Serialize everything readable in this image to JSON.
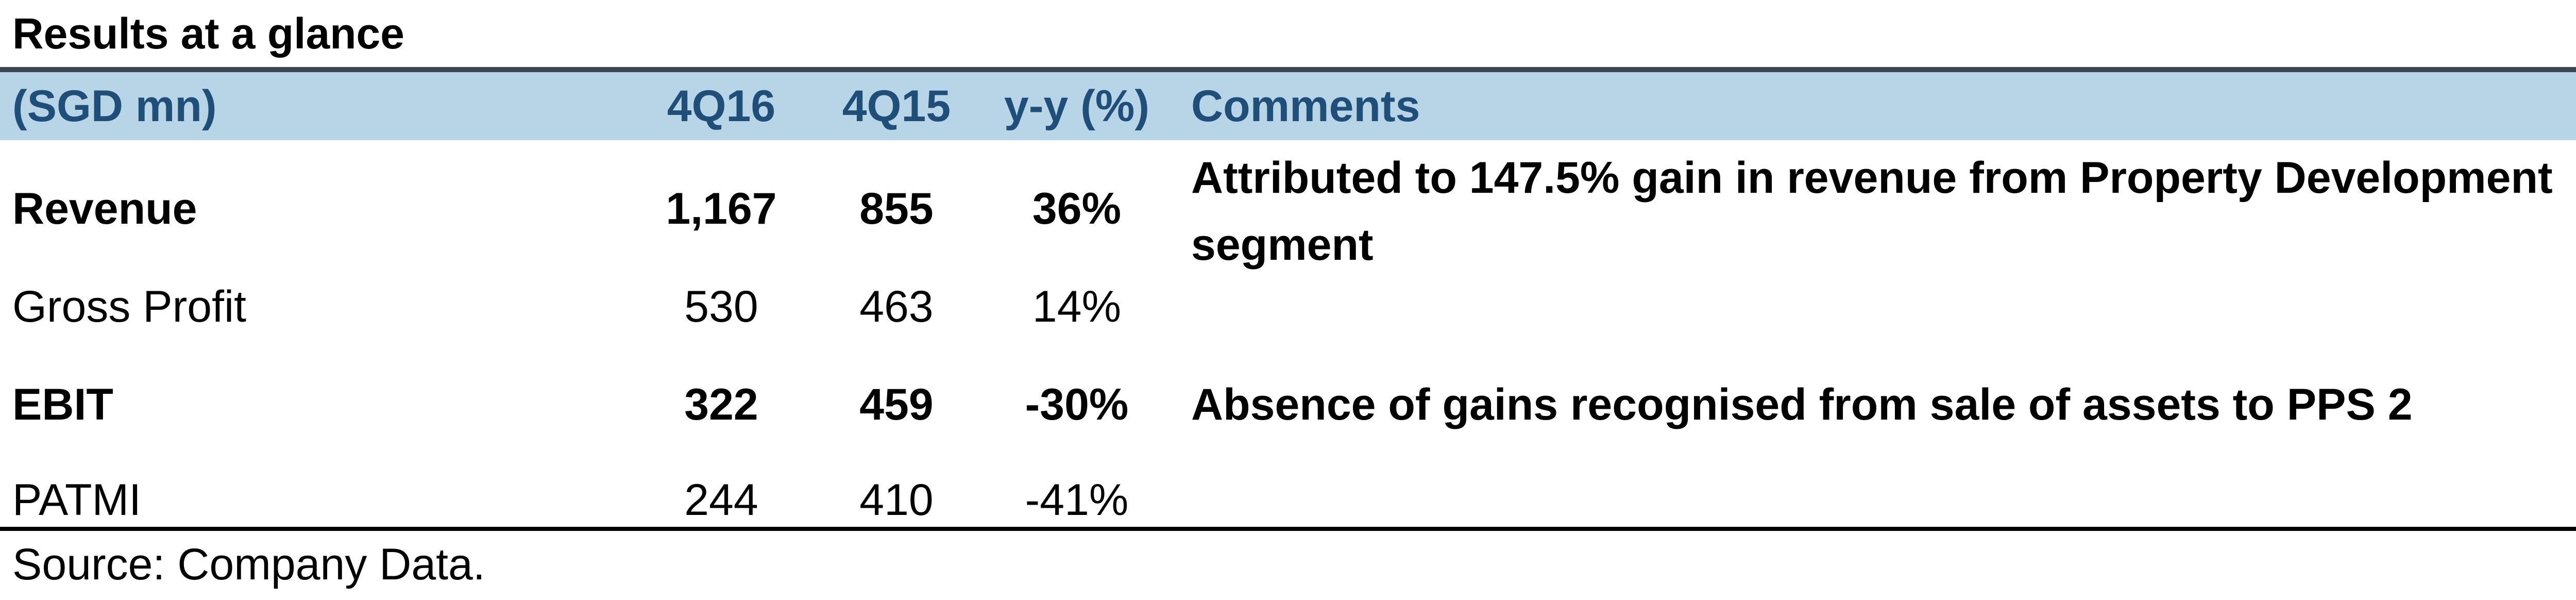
{
  "title": "Results at a glance",
  "header": {
    "label": "(SGD mn)",
    "col_4q16": "4Q16",
    "col_4q15": "4Q15",
    "col_yy": "y-y (%)",
    "col_comments": "Comments"
  },
  "rows": [
    {
      "label": "Revenue",
      "q4_16": "1,167",
      "q4_15": "855",
      "yy": "36%",
      "comment": "Attributed to 147.5% gain in revenue from Property Development segment",
      "bold": true
    },
    {
      "label": "Gross Profit",
      "q4_16": "530",
      "q4_15": "463",
      "yy": "14%",
      "comment": "",
      "bold": false
    },
    {
      "label": "EBIT",
      "q4_16": "322",
      "q4_15": "459",
      "yy": "-30%",
      "comment": "Absence of gains recognised from sale of assets to PPS 2",
      "bold": true
    },
    {
      "label": "PATMI",
      "q4_16": "244",
      "q4_15": "410",
      "yy": "-41%",
      "comment": "",
      "bold": false
    }
  ],
  "source": "Source: Company Data.",
  "colors": {
    "header_bg": "#b7d5e7",
    "header_text": "#1f4e79",
    "rule": "#3b4651"
  }
}
